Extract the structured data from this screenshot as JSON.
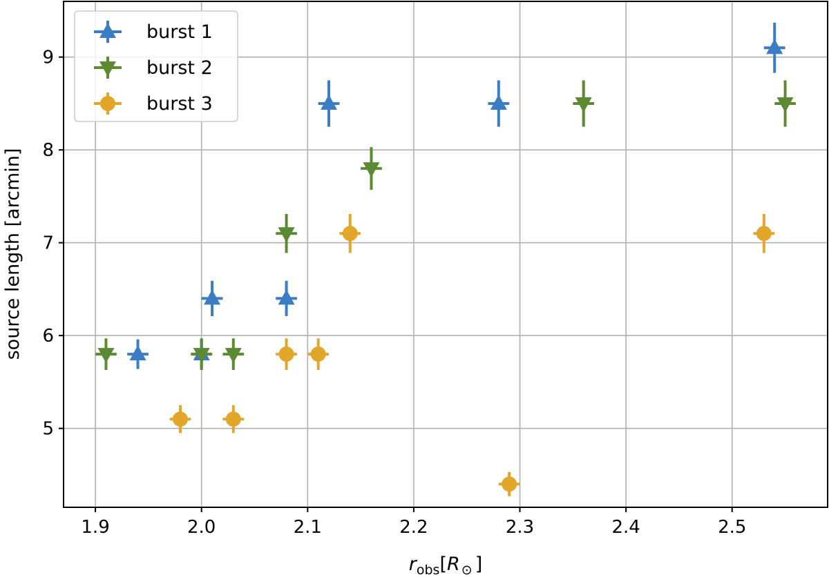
{
  "chart_data": {
    "type": "scatter",
    "title": "",
    "xlabel": {
      "main": "r",
      "sub": "obs",
      "bracket_open": "[",
      "unit_main": "R",
      "unit_sub": "⊙",
      "bracket_close": "]"
    },
    "ylabel": "source length [arcmin]",
    "xlim": [
      1.87,
      2.59
    ],
    "ylim": [
      4.15,
      9.6
    ],
    "xticks": [
      "1.9",
      "2.0",
      "2.1",
      "2.2",
      "2.3",
      "2.4",
      "2.5"
    ],
    "yticks": [
      "5",
      "6",
      "7",
      "8",
      "9"
    ],
    "grid": true,
    "legend_position": "top-left",
    "series": [
      {
        "name": "burst 1",
        "marker": "triangle-up",
        "color": "#3b7dc4",
        "points": [
          {
            "x": 1.94,
            "y": 5.8,
            "yerr": 0.16,
            "xerr": 0.01
          },
          {
            "x": 2.0,
            "y": 5.8,
            "yerr": 0.16,
            "xerr": 0.01
          },
          {
            "x": 2.01,
            "y": 6.4,
            "yerr": 0.19,
            "xerr": 0.01
          },
          {
            "x": 2.08,
            "y": 6.4,
            "yerr": 0.19,
            "xerr": 0.01
          },
          {
            "x": 2.12,
            "y": 8.5,
            "yerr": 0.25,
            "xerr": 0.01
          },
          {
            "x": 2.28,
            "y": 8.5,
            "yerr": 0.25,
            "xerr": 0.01
          },
          {
            "x": 2.54,
            "y": 9.1,
            "yerr": 0.27,
            "xerr": 0.01
          }
        ]
      },
      {
        "name": "burst 2",
        "marker": "triangle-down",
        "color": "#5b8a32",
        "points": [
          {
            "x": 1.91,
            "y": 5.8,
            "yerr": 0.17,
            "xerr": 0.01
          },
          {
            "x": 2.0,
            "y": 5.8,
            "yerr": 0.17,
            "xerr": 0.01
          },
          {
            "x": 2.03,
            "y": 5.8,
            "yerr": 0.17,
            "xerr": 0.01
          },
          {
            "x": 2.08,
            "y": 7.1,
            "yerr": 0.21,
            "xerr": 0.01
          },
          {
            "x": 2.16,
            "y": 7.8,
            "yerr": 0.23,
            "xerr": 0.01
          },
          {
            "x": 2.36,
            "y": 8.5,
            "yerr": 0.25,
            "xerr": 0.01
          },
          {
            "x": 2.55,
            "y": 8.5,
            "yerr": 0.25,
            "xerr": 0.01
          }
        ]
      },
      {
        "name": "burst 3",
        "marker": "circle",
        "color": "#e2a62b",
        "points": [
          {
            "x": 1.98,
            "y": 5.1,
            "yerr": 0.15,
            "xerr": 0.01
          },
          {
            "x": 2.03,
            "y": 5.1,
            "yerr": 0.15,
            "xerr": 0.01
          },
          {
            "x": 2.08,
            "y": 5.8,
            "yerr": 0.17,
            "xerr": 0.01
          },
          {
            "x": 2.11,
            "y": 5.8,
            "yerr": 0.17,
            "xerr": 0.01
          },
          {
            "x": 2.14,
            "y": 7.1,
            "yerr": 0.21,
            "xerr": 0.01
          },
          {
            "x": 2.29,
            "y": 4.4,
            "yerr": 0.13,
            "xerr": 0.01
          },
          {
            "x": 2.53,
            "y": 7.1,
            "yerr": 0.21,
            "xerr": 0.01
          }
        ]
      }
    ]
  }
}
